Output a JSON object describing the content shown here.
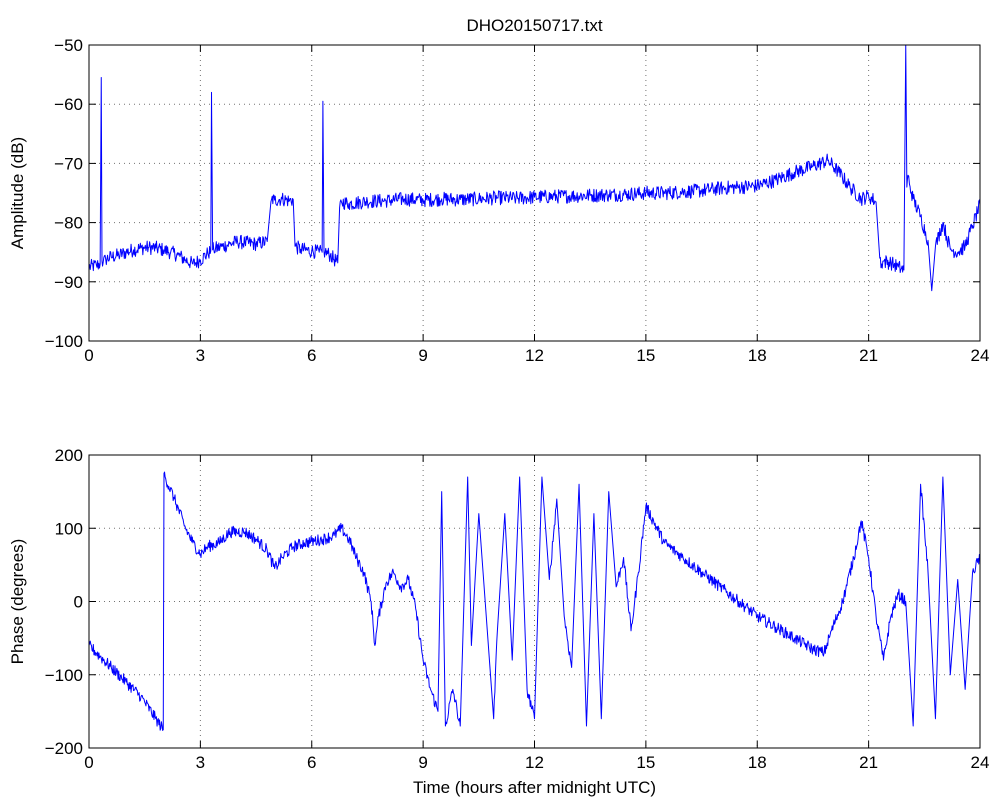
{
  "chart_data": [
    {
      "type": "line",
      "title": "DHO20150717.txt",
      "xlabel": "",
      "ylabel": "Amplitude (dB)",
      "xlim": [
        0,
        24
      ],
      "ylim": [
        -100,
        -50
      ],
      "xticks": [
        0,
        3,
        6,
        9,
        12,
        15,
        18,
        21,
        24
      ],
      "yticks": [
        -50,
        -60,
        -70,
        -80,
        -90,
        -100
      ],
      "grid": true,
      "color": "#0000ff",
      "series": [
        {
          "x": [
            0,
            0.2,
            0.3,
            0.33,
            0.35,
            0.38,
            0.45,
            0.6,
            0.8,
            1.0,
            1.2,
            1.4,
            1.6,
            1.8,
            2.0,
            2.2,
            2.4,
            2.6,
            2.8,
            3.0,
            3.2,
            3.28,
            3.3,
            3.33,
            3.36,
            3.6,
            3.8,
            4.0,
            4.2,
            4.5,
            4.8,
            4.9,
            4.92,
            5.0,
            5.2,
            5.4,
            5.5,
            5.55,
            5.7,
            6.0,
            6.2,
            6.28,
            6.3,
            6.33,
            6.36,
            6.5,
            6.7,
            6.75,
            6.8,
            7.0,
            7.5,
            8.0,
            8.5,
            9.0,
            9.5,
            10.0,
            10.5,
            11.0,
            11.5,
            12.0,
            12.5,
            13.0,
            13.5,
            14.0,
            14.5,
            15.0,
            15.5,
            16.0,
            16.5,
            17.0,
            17.5,
            18.0,
            18.5,
            19.0,
            19.5,
            19.9,
            20.2,
            20.5,
            20.8,
            21.0,
            21.2,
            21.3,
            21.35,
            21.4,
            21.6,
            21.8,
            21.95,
            22.0,
            22.03,
            22.06,
            22.1,
            22.2,
            22.4,
            22.6,
            22.7,
            22.8,
            23.0,
            23.2,
            23.4,
            23.6,
            23.8,
            24.0
          ],
          "values": [
            -87.5,
            -87.2,
            -87.0,
            -55.5,
            -86.5,
            -86.8,
            -86.2,
            -85.8,
            -85.5,
            -85.0,
            -84.6,
            -84.3,
            -84.2,
            -84.3,
            -84.6,
            -85.0,
            -85.5,
            -86.3,
            -87.0,
            -86.3,
            -85.2,
            -84.8,
            -58.0,
            -84.6,
            -84.5,
            -84.0,
            -83.6,
            -83.2,
            -83.4,
            -83.6,
            -83.2,
            -76.5,
            -76.0,
            -76.2,
            -76.0,
            -76.3,
            -76.1,
            -84.0,
            -84.5,
            -84.8,
            -85.0,
            -85.0,
            -59.5,
            -84.9,
            -85.0,
            -85.5,
            -86.8,
            -77.5,
            -76.5,
            -76.8,
            -76.4,
            -76.3,
            -76.0,
            -76.2,
            -76.0,
            -76.1,
            -76.0,
            -75.8,
            -75.9,
            -75.7,
            -75.6,
            -75.5,
            -75.4,
            -75.3,
            -75.2,
            -75.0,
            -75.0,
            -74.8,
            -74.6,
            -74.2,
            -74.0,
            -73.8,
            -72.8,
            -71.5,
            -70.5,
            -69.5,
            -71.5,
            -74.0,
            -76.0,
            -75.5,
            -76.5,
            -86.0,
            -87.0,
            -86.5,
            -86.8,
            -87.5,
            -88.0,
            -50.0,
            -74.0,
            -72.0,
            -73.5,
            -76.0,
            -79.0,
            -83.0,
            -91.5,
            -84.0,
            -80.0,
            -84.5,
            -85.0,
            -84.0,
            -80.5,
            -77.0
          ]
        }
      ]
    },
    {
      "type": "line",
      "title": "",
      "xlabel": "Time (hours after midnight UTC)",
      "ylabel": "Phase (degrees)",
      "xlim": [
        0,
        24
      ],
      "ylim": [
        -200,
        200
      ],
      "xticks": [
        0,
        3,
        6,
        9,
        12,
        15,
        18,
        21,
        24
      ],
      "yticks": [
        200,
        100,
        0,
        -100,
        -200
      ],
      "grid": true,
      "color": "#0000ff",
      "series": [
        {
          "x": [
            0,
            0.3,
            0.6,
            1.0,
            1.4,
            1.8,
            2.0,
            2.02,
            2.05,
            2.3,
            2.6,
            2.8,
            3.0,
            3.2,
            3.5,
            3.8,
            4.2,
            4.5,
            4.8,
            5.0,
            5.2,
            5.5,
            5.8,
            6.0,
            6.3,
            6.6,
            6.8,
            7.0,
            7.2,
            7.4,
            7.6,
            7.7,
            7.8,
            8.0,
            8.2,
            8.4,
            8.6,
            8.8,
            9.0,
            9.2,
            9.4,
            9.5,
            9.6,
            9.8,
            10.0,
            10.2,
            10.3,
            10.5,
            10.7,
            10.9,
            11.0,
            11.2,
            11.4,
            11.6,
            11.8,
            12.0,
            12.2,
            12.4,
            12.6,
            12.8,
            13.0,
            13.2,
            13.4,
            13.6,
            13.8,
            14.0,
            14.2,
            14.4,
            14.6,
            14.8,
            15.0,
            15.5,
            16.0,
            16.5,
            17.0,
            17.5,
            18.0,
            18.5,
            19.0,
            19.5,
            19.8,
            20.0,
            20.3,
            20.6,
            20.8,
            21.0,
            21.2,
            21.4,
            21.6,
            21.8,
            22.0,
            22.2,
            22.4,
            22.6,
            22.8,
            23.0,
            23.2,
            23.4,
            23.6,
            23.8,
            24.0
          ],
          "values": [
            -60,
            -75,
            -90,
            -110,
            -130,
            -160,
            -175,
            175,
            170,
            140,
            100,
            80,
            65,
            75,
            80,
            95,
            95,
            85,
            70,
            45,
            60,
            75,
            80,
            82,
            85,
            90,
            100,
            85,
            60,
            40,
            0,
            -60,
            -20,
            25,
            40,
            20,
            30,
            -10,
            -80,
            -120,
            -150,
            150,
            -170,
            -120,
            -170,
            170,
            -60,
            120,
            -20,
            -160,
            -40,
            120,
            -80,
            170,
            -120,
            -160,
            170,
            30,
            140,
            -20,
            -90,
            160,
            -170,
            120,
            -160,
            150,
            20,
            60,
            -40,
            40,
            130,
            80,
            60,
            40,
            20,
            0,
            -20,
            -35,
            -50,
            -65,
            -70,
            -40,
            0,
            60,
            110,
            60,
            -20,
            -80,
            -20,
            10,
            0,
            -170,
            160,
            40,
            -160,
            170,
            -100,
            30,
            -120,
            40,
            60
          ]
        }
      ]
    }
  ]
}
